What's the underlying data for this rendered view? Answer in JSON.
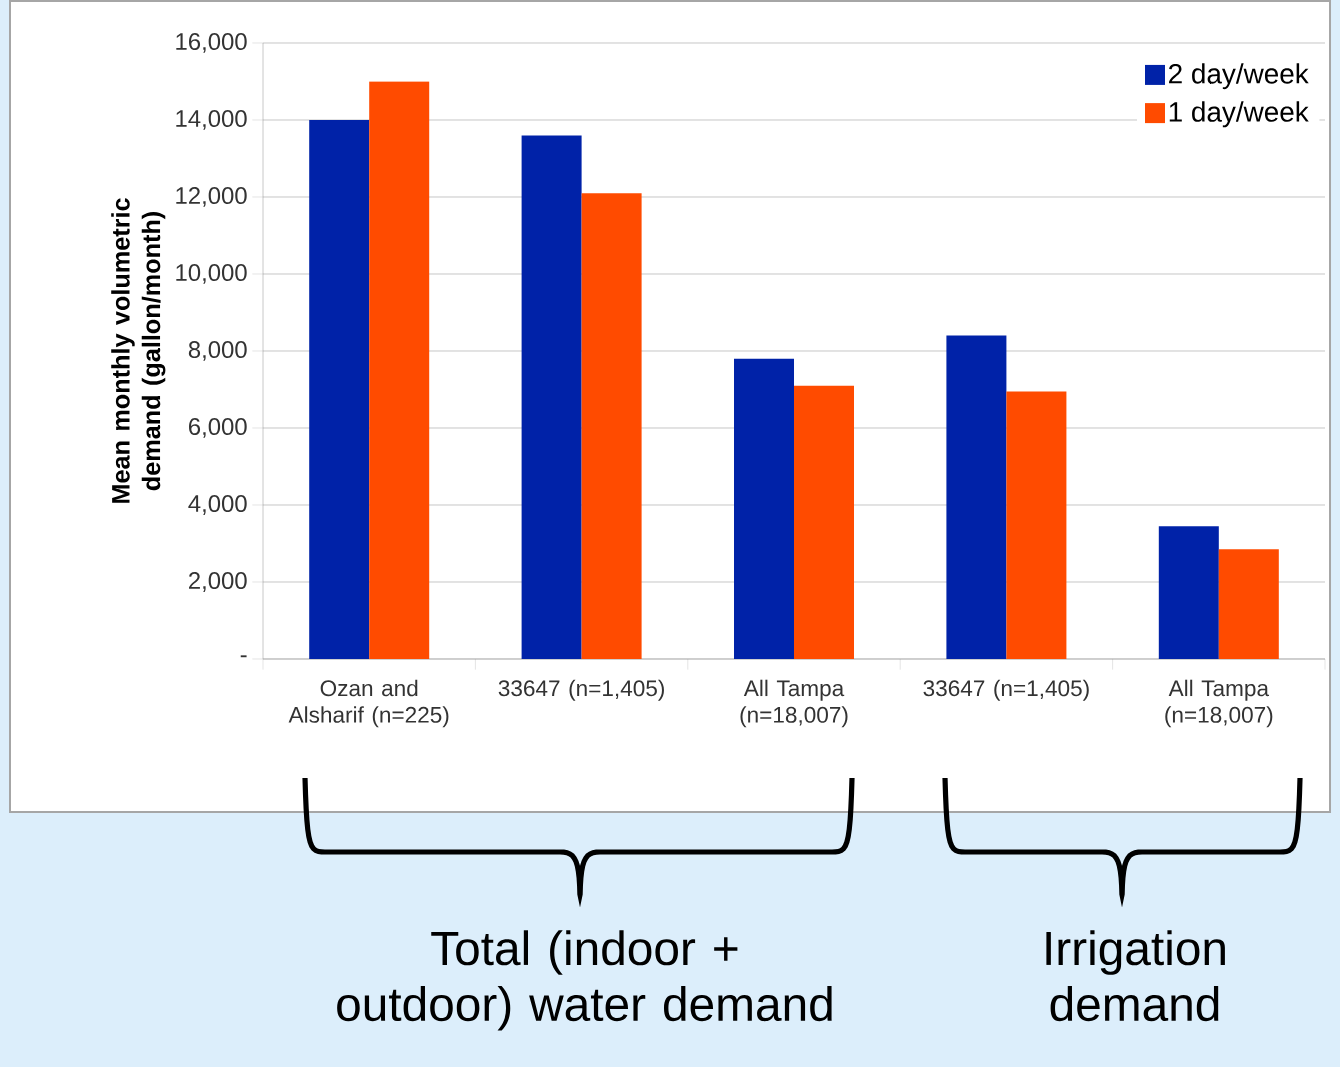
{
  "chart_data": {
    "type": "bar",
    "ylabel": "Mean monthly volumetric demand (gallon/month)",
    "categories": [
      "Ozan and Alsharif (n=225)",
      "33647 (n=1,405)",
      "All Tampa (n=18,007)",
      "33647 (n=1,405)",
      "All Tampa (n=18,007)"
    ],
    "series": [
      {
        "name": "2 day/week",
        "color": "#0022a8",
        "values": [
          14000,
          13600,
          7800,
          8400,
          3450
        ]
      },
      {
        "name": "1 day/week",
        "color": "#ff4b00",
        "values": [
          15000,
          12100,
          7100,
          6950,
          2850
        ]
      }
    ],
    "ylim": [
      0,
      16000
    ],
    "yticks": [
      {
        "value": 0,
        "label": "-"
      },
      {
        "value": 2000,
        "label": "2,000"
      },
      {
        "value": 4000,
        "label": "4,000"
      },
      {
        "value": 6000,
        "label": "6,000"
      },
      {
        "value": 8000,
        "label": "8,000"
      },
      {
        "value": 10000,
        "label": "10,000"
      },
      {
        "value": 12000,
        "label": "12,000"
      },
      {
        "value": 14000,
        "label": "14,000"
      },
      {
        "value": 16000,
        "label": "16,000"
      }
    ],
    "grid": "y",
    "legend": "top right",
    "annotations": [
      "Total (indoor + outdoor) water demand",
      "Irrigation demand"
    ]
  }
}
